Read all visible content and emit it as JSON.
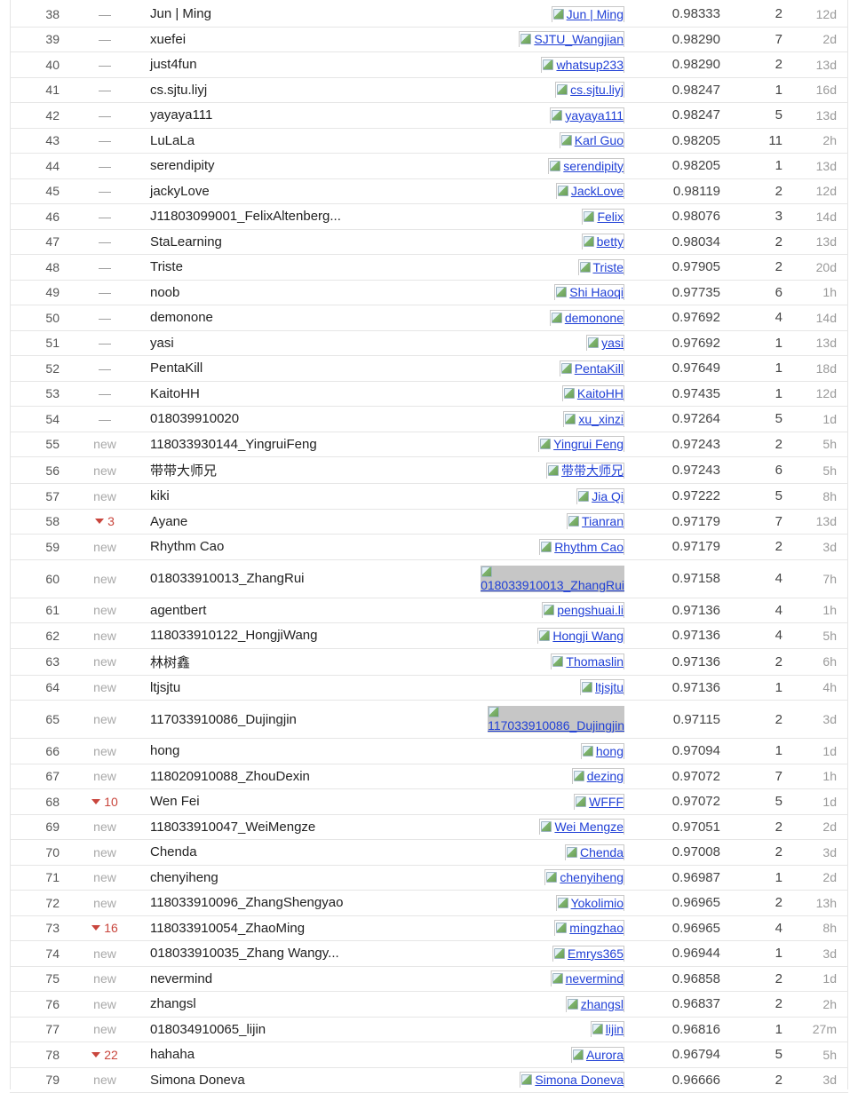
{
  "leaderboard": {
    "rows": [
      {
        "rank": "38",
        "change": "—",
        "change_type": "same",
        "team": "Jun | Ming",
        "member": "Jun | Ming",
        "score": "0.98333",
        "entries": "2",
        "last": "12d"
      },
      {
        "rank": "39",
        "change": "—",
        "change_type": "same",
        "team": "xuefei",
        "member": "SJTU_Wangjian",
        "score": "0.98290",
        "entries": "7",
        "last": "2d"
      },
      {
        "rank": "40",
        "change": "—",
        "change_type": "same",
        "team": "just4fun",
        "member": "whatsup233",
        "score": "0.98290",
        "entries": "2",
        "last": "13d"
      },
      {
        "rank": "41",
        "change": "—",
        "change_type": "same",
        "team": "cs.sjtu.liyj",
        "member": "cs.sjtu.liyj",
        "score": "0.98247",
        "entries": "1",
        "last": "16d"
      },
      {
        "rank": "42",
        "change": "—",
        "change_type": "same",
        "team": "yayaya111",
        "member": "yayaya111",
        "score": "0.98247",
        "entries": "5",
        "last": "13d"
      },
      {
        "rank": "43",
        "change": "—",
        "change_type": "same",
        "team": "LuLaLa",
        "member": "Karl Guo",
        "score": "0.98205",
        "entries": "11",
        "last": "2h"
      },
      {
        "rank": "44",
        "change": "—",
        "change_type": "same",
        "team": "serendipity",
        "member": "serendipity",
        "score": "0.98205",
        "entries": "1",
        "last": "13d"
      },
      {
        "rank": "45",
        "change": "—",
        "change_type": "same",
        "team": "jackyLove",
        "member": "JackLove",
        "score": "0.98119",
        "entries": "2",
        "last": "12d"
      },
      {
        "rank": "46",
        "change": "—",
        "change_type": "same",
        "team": "J11803099001_FelixAltenberg...",
        "member": "Felix",
        "score": "0.98076",
        "entries": "3",
        "last": "14d"
      },
      {
        "rank": "47",
        "change": "—",
        "change_type": "same",
        "team": "StaLearning",
        "member": "betty",
        "score": "0.98034",
        "entries": "2",
        "last": "13d"
      },
      {
        "rank": "48",
        "change": "—",
        "change_type": "same",
        "team": "Triste",
        "member": "Triste",
        "score": "0.97905",
        "entries": "2",
        "last": "20d"
      },
      {
        "rank": "49",
        "change": "—",
        "change_type": "same",
        "team": "noob",
        "member": "Shi Haoqi",
        "score": "0.97735",
        "entries": "6",
        "last": "1h"
      },
      {
        "rank": "50",
        "change": "—",
        "change_type": "same",
        "team": "demonone",
        "member": "demonone",
        "score": "0.97692",
        "entries": "4",
        "last": "14d"
      },
      {
        "rank": "51",
        "change": "—",
        "change_type": "same",
        "team": "yasi",
        "member": "yasi",
        "score": "0.97692",
        "entries": "1",
        "last": "13d"
      },
      {
        "rank": "52",
        "change": "—",
        "change_type": "same",
        "team": "PentaKill",
        "member": "PentaKill",
        "score": "0.97649",
        "entries": "1",
        "last": "18d"
      },
      {
        "rank": "53",
        "change": "—",
        "change_type": "same",
        "team": "KaitoHH",
        "member": "KaitoHH",
        "score": "0.97435",
        "entries": "1",
        "last": "12d"
      },
      {
        "rank": "54",
        "change": "—",
        "change_type": "same",
        "team": "018039910020",
        "member": "xu_xinzi",
        "score": "0.97264",
        "entries": "5",
        "last": "1d"
      },
      {
        "rank": "55",
        "change": "new",
        "change_type": "new",
        "team": "118033930144_YingruiFeng",
        "member": "Yingrui Feng",
        "score": "0.97243",
        "entries": "2",
        "last": "5h"
      },
      {
        "rank": "56",
        "change": "new",
        "change_type": "new",
        "team": "带带大师兄",
        "member": "带带大师兄",
        "score": "0.97243",
        "entries": "6",
        "last": "5h"
      },
      {
        "rank": "57",
        "change": "new",
        "change_type": "new",
        "team": "kiki",
        "member": "Jia Qi",
        "score": "0.97222",
        "entries": "5",
        "last": "8h"
      },
      {
        "rank": "58",
        "change": "3",
        "change_type": "down",
        "team": "Ayane",
        "member": "Tianran",
        "score": "0.97179",
        "entries": "7",
        "last": "13d"
      },
      {
        "rank": "59",
        "change": "new",
        "change_type": "new",
        "team": "Rhythm Cao",
        "member": "Rhythm Cao",
        "score": "0.97179",
        "entries": "2",
        "last": "3d"
      },
      {
        "rank": "60",
        "change": "new",
        "change_type": "new",
        "team": "018033910013_ZhangRui",
        "member": "018033910013_ZhangRui",
        "score": "0.97158",
        "entries": "4",
        "last": "7h",
        "wide": true
      },
      {
        "rank": "61",
        "change": "new",
        "change_type": "new",
        "team": "agentbert",
        "member": "pengshuai.li",
        "score": "0.97136",
        "entries": "4",
        "last": "1h"
      },
      {
        "rank": "62",
        "change": "new",
        "change_type": "new",
        "team": "118033910122_HongjiWang",
        "member": "Hongji Wang",
        "score": "0.97136",
        "entries": "4",
        "last": "5h"
      },
      {
        "rank": "63",
        "change": "new",
        "change_type": "new",
        "team": "林树鑫",
        "member": "Thomaslin",
        "score": "0.97136",
        "entries": "2",
        "last": "6h"
      },
      {
        "rank": "64",
        "change": "new",
        "change_type": "new",
        "team": "ltjsjtu",
        "member": "ltjsjtu",
        "score": "0.97136",
        "entries": "1",
        "last": "4h"
      },
      {
        "rank": "65",
        "change": "new",
        "change_type": "new",
        "team": "117033910086_Dujingjin",
        "member": "117033910086_Dujingjin",
        "score": "0.97115",
        "entries": "2",
        "last": "3d",
        "wide": true
      },
      {
        "rank": "66",
        "change": "new",
        "change_type": "new",
        "team": "hong",
        "member": "hong",
        "score": "0.97094",
        "entries": "1",
        "last": "1d"
      },
      {
        "rank": "67",
        "change": "new",
        "change_type": "new",
        "team": "118020910088_ZhouDexin",
        "member": "dezing",
        "score": "0.97072",
        "entries": "7",
        "last": "1h"
      },
      {
        "rank": "68",
        "change": "10",
        "change_type": "down",
        "team": "Wen Fei",
        "member": "WFFF",
        "score": "0.97072",
        "entries": "5",
        "last": "1d"
      },
      {
        "rank": "69",
        "change": "new",
        "change_type": "new",
        "team": "118033910047_WeiMengze",
        "member": "Wei Mengze",
        "score": "0.97051",
        "entries": "2",
        "last": "2d"
      },
      {
        "rank": "70",
        "change": "new",
        "change_type": "new",
        "team": "Chenda",
        "member": "Chenda",
        "score": "0.97008",
        "entries": "2",
        "last": "3d"
      },
      {
        "rank": "71",
        "change": "new",
        "change_type": "new",
        "team": "chenyiheng",
        "member": "chenyiheng",
        "score": "0.96987",
        "entries": "1",
        "last": "2d"
      },
      {
        "rank": "72",
        "change": "new",
        "change_type": "new",
        "team": "118033910096_ZhangShengyao",
        "member": "Yokolimio",
        "score": "0.96965",
        "entries": "2",
        "last": "13h"
      },
      {
        "rank": "73",
        "change": "16",
        "change_type": "down",
        "team": "118033910054_ZhaoMing",
        "member": "mingzhao",
        "score": "0.96965",
        "entries": "4",
        "last": "8h"
      },
      {
        "rank": "74",
        "change": "new",
        "change_type": "new",
        "team": "018033910035_Zhang Wangy...",
        "member": "Emrys365",
        "score": "0.96944",
        "entries": "1",
        "last": "3d"
      },
      {
        "rank": "75",
        "change": "new",
        "change_type": "new",
        "team": "nevermind",
        "member": "nevermind",
        "score": "0.96858",
        "entries": "2",
        "last": "1d"
      },
      {
        "rank": "76",
        "change": "new",
        "change_type": "new",
        "team": "zhangsl",
        "member": "zhangsl",
        "score": "0.96837",
        "entries": "2",
        "last": "2h"
      },
      {
        "rank": "77",
        "change": "new",
        "change_type": "new",
        "team": "018034910065_lijin",
        "member": "lijin",
        "score": "0.96816",
        "entries": "1",
        "last": "27m"
      },
      {
        "rank": "78",
        "change": "22",
        "change_type": "down",
        "team": "hahaha",
        "member": "Aurora",
        "score": "0.96794",
        "entries": "5",
        "last": "5h"
      },
      {
        "rank": "79",
        "change": "new",
        "change_type": "new",
        "team": "Simona Doneva",
        "member": "Simona Doneva",
        "score": "0.96666",
        "entries": "2",
        "last": "3d"
      }
    ]
  }
}
